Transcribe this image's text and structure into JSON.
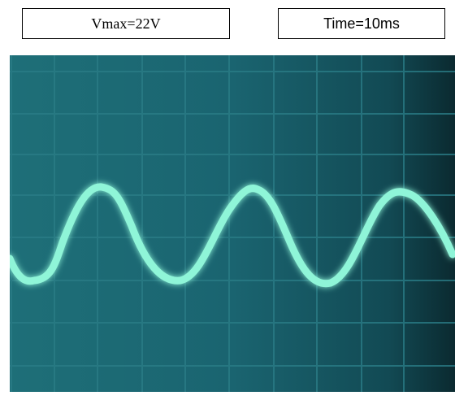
{
  "labels": {
    "voltage": "Vmax=22V",
    "time": "Time=10ms"
  }
}
